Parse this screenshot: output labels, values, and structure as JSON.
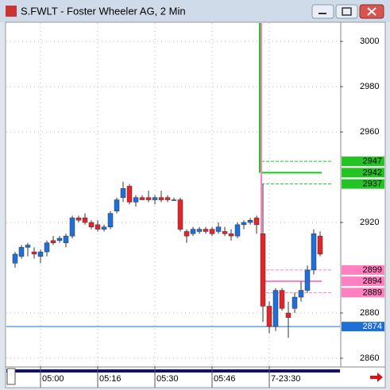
{
  "window": {
    "title": "S.FWLT - Foster Wheeler AG, 2 Min"
  },
  "chart_data": {
    "type": "candlestick",
    "categories": [
      null,
      null,
      null,
      null,
      "05:00",
      null,
      null,
      null,
      null,
      null,
      null,
      null,
      null,
      "05:16",
      null,
      null,
      null,
      null,
      null,
      null,
      null,
      null,
      "05:30",
      null,
      null,
      null,
      null,
      null,
      null,
      null,
      null,
      "05:46",
      null,
      null,
      null,
      null,
      null,
      null,
      null,
      null,
      "7-23:30",
      null,
      null,
      null,
      null,
      null,
      null,
      null,
      null
    ],
    "open": [
      2902,
      2905,
      2909,
      2907,
      2905,
      2907,
      2912,
      2912,
      2911,
      2914,
      2922,
      2922,
      2920,
      2919,
      2917,
      2918,
      2925,
      2931,
      2936,
      2929,
      2931,
      2931,
      2930,
      2931,
      2931,
      2930,
      2930,
      2916,
      2915,
      2916,
      2917,
      2917,
      2916,
      2916,
      2915,
      2914,
      2919,
      2920,
      2922,
      2915,
      2883,
      2874,
      2890,
      2880,
      2882,
      2887,
      2890,
      2899,
      2914
    ],
    "high": [
      2907,
      2910,
      2911,
      2909,
      2908,
      2912,
      2914,
      2914,
      2915,
      2923,
      2923,
      2924,
      2921,
      2921,
      2919,
      2925,
      2931,
      2938,
      2937,
      2932,
      2932,
      2934,
      2932,
      2934,
      2932,
      2931,
      2931,
      2917,
      2918,
      2918,
      2918,
      2918,
      2920,
      2918,
      2917,
      2920,
      2921,
      2922,
      2923,
      2937,
      2885,
      2891,
      2891,
      2885,
      2889,
      2894,
      2901,
      2917,
      2916
    ],
    "low": [
      2900,
      2904,
      2905,
      2904,
      2902,
      2905,
      2910,
      2911,
      2909,
      2913,
      2920,
      2919,
      2917,
      2916,
      2916,
      2917,
      2924,
      2929,
      2928,
      2927,
      2930,
      2929,
      2928,
      2929,
      2929,
      2930,
      2916,
      2911,
      2914,
      2915,
      2915,
      2914,
      2915,
      2914,
      2912,
      2913,
      2917,
      2919,
      2915,
      2876,
      2871,
      2872,
      2881,
      2869,
      2880,
      2885,
      2889,
      2897,
      2905
    ],
    "close": [
      2906,
      2909,
      2910,
      2906,
      2907,
      2911,
      2911,
      2913,
      2914,
      2922,
      2921,
      2920,
      2918,
      2917,
      2918,
      2924,
      2930,
      2935,
      2929,
      2931,
      2930,
      2930,
      2931,
      2930,
      2930,
      2930,
      2917,
      2914,
      2917,
      2917,
      2916,
      2915,
      2918,
      2915,
      2914,
      2919,
      2920,
      2921,
      2919,
      2883,
      2874,
      2890,
      2882,
      2878,
      2887,
      2890,
      2899,
      2915,
      2906
    ],
    "up_color": "#1e6fd6",
    "down_color": "#e3242b",
    "ylim": [
      2856.5,
      3008.1
    ],
    "yticks": [
      2860,
      2880,
      2920,
      2960,
      2980,
      3000
    ],
    "grid": true,
    "levels": [
      {
        "value": 2947,
        "color": "#22c322",
        "dashed": true
      },
      {
        "value": 2942,
        "color": "#22c322",
        "dashed": false
      },
      {
        "value": 2937,
        "color": "#22c322",
        "dashed": true
      },
      {
        "value": 2899,
        "color": "#ff7fc0",
        "dashed": true
      },
      {
        "value": 2894,
        "color": "#ff7fc0",
        "dashed": false
      },
      {
        "value": 2889,
        "color": "#ff7fc0",
        "dashed": true
      },
      {
        "value": 2874,
        "color": "#1e6fd6",
        "dashed": false
      }
    ]
  }
}
